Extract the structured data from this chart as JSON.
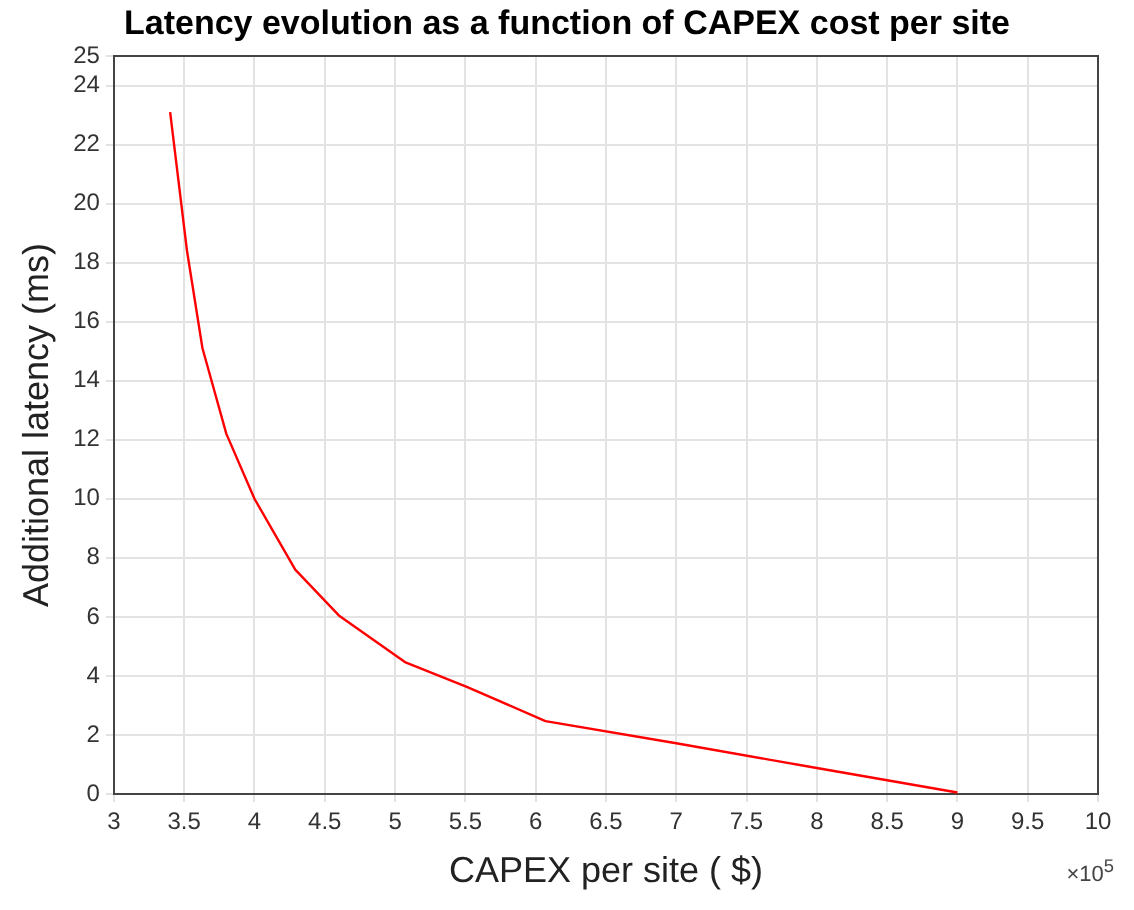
{
  "chart_data": {
    "type": "line",
    "title": "Latency evolution as a function of CAPEX cost per site",
    "xlabel": "CAPEX per site ( $)",
    "ylabel": "Additional latency (ms)",
    "annotations": [
      "×10$^{5}$"
    ],
    "series": [
      {
        "color": "#ff0000",
        "x": [
          3.4,
          3.52,
          3.63,
          3.8,
          4.0,
          4.29,
          4.6,
          5.07,
          5.51,
          6.07,
          7.0,
          8.0,
          9.0
        ],
        "values": [
          23.1,
          18.4,
          15.1,
          12.2,
          10.0,
          7.6,
          6.05,
          4.47,
          3.63,
          2.47,
          1.72,
          0.88,
          0.05
        ]
      }
    ],
    "xlim": [
      3,
      10
    ],
    "xticks": [
      3,
      3.5,
      4,
      4.5,
      5,
      5.5,
      6,
      6.5,
      7,
      7.5,
      8,
      8.5,
      9,
      9.5,
      10
    ],
    "ylim": [
      0,
      25
    ],
    "yticks": [
      0,
      2,
      4,
      6,
      8,
      10,
      12,
      14,
      16,
      18,
      20,
      22,
      24,
      25
    ],
    "grid": true,
    "legend": false,
    "marker": "none",
    "line_style": "solid"
  }
}
